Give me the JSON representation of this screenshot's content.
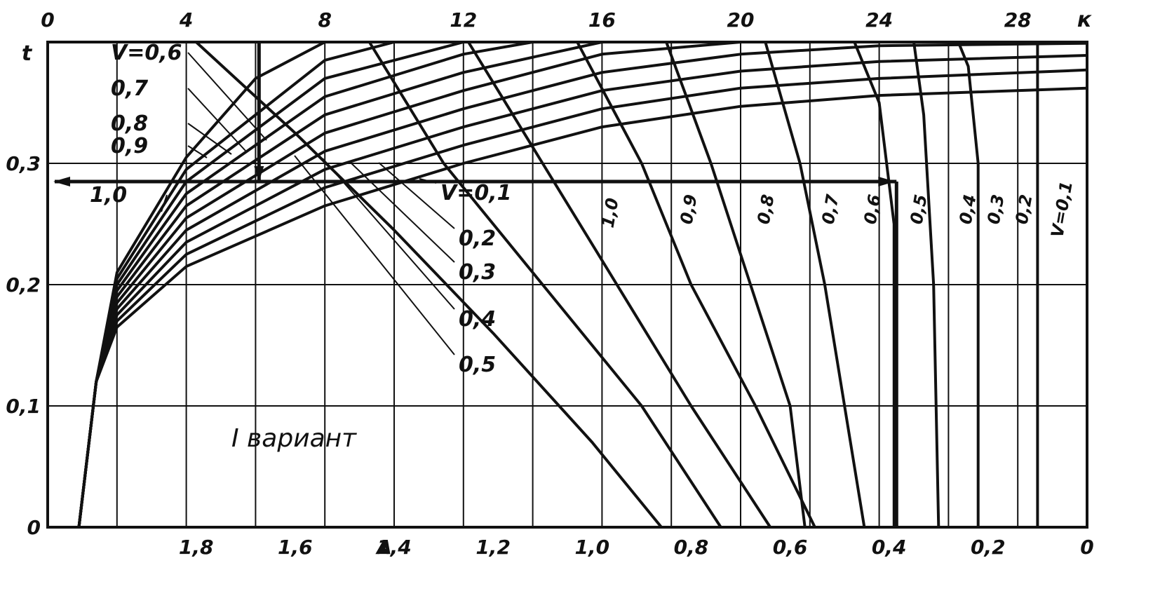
{
  "chart_data": {
    "type": "line",
    "title": "",
    "annotation": "I вариант",
    "axes": {
      "bottom_k": {
        "label": "",
        "ticks": []
      },
      "top_k": {
        "label": "к",
        "ticks": [
          "0",
          "4",
          "8",
          "12",
          "16",
          "20",
          "24",
          "28"
        ],
        "range": [
          0,
          30
        ]
      },
      "left_t": {
        "label": "t",
        "ticks": [
          "0",
          "0,1",
          "0,2",
          "0,3"
        ],
        "range": [
          0,
          0.4
        ]
      },
      "bottom_A": {
        "label": "A",
        "ticks": [
          "1,8",
          "1,6",
          "1,4",
          "1,2",
          "1,0",
          "0,8",
          "0,6",
          "0,4",
          "0,2",
          "0"
        ],
        "range": [
          2.1,
          0
        ]
      }
    },
    "grid": true,
    "reference_lines": [
      {
        "type": "horizontal",
        "y": 0.285,
        "x_from": 0,
        "x_to": 24.5,
        "arrows": "both"
      },
      {
        "type": "vertical",
        "x": 6.1,
        "y_from": 0.4,
        "y_to": 0.285,
        "arrow": "down"
      },
      {
        "type": "vertical",
        "x": 24.5,
        "y_from": 0.285,
        "y_to": 0
      }
    ],
    "series_rising": [
      {
        "name": "V=0,1",
        "label": "V=0,1",
        "points": [
          [
            0.9,
            0
          ],
          [
            1.4,
            0.12
          ],
          [
            2,
            0.165
          ],
          [
            4,
            0.215
          ],
          [
            8,
            0.265
          ],
          [
            12,
            0.3
          ],
          [
            16,
            0.33
          ],
          [
            20,
            0.347
          ],
          [
            24,
            0.356
          ],
          [
            30,
            0.362
          ]
        ]
      },
      {
        "name": "0,2",
        "label": "0,2",
        "points": [
          [
            0.9,
            0
          ],
          [
            1.4,
            0.12
          ],
          [
            2,
            0.17
          ],
          [
            4,
            0.225
          ],
          [
            8,
            0.28
          ],
          [
            12,
            0.315
          ],
          [
            16,
            0.345
          ],
          [
            20,
            0.362
          ],
          [
            24,
            0.37
          ],
          [
            30,
            0.377
          ]
        ]
      },
      {
        "name": "0,3",
        "label": "0,3",
        "points": [
          [
            0.9,
            0
          ],
          [
            1.4,
            0.12
          ],
          [
            2,
            0.175
          ],
          [
            4,
            0.235
          ],
          [
            8,
            0.295
          ],
          [
            12,
            0.33
          ],
          [
            16,
            0.36
          ],
          [
            20,
            0.376
          ],
          [
            24,
            0.384
          ],
          [
            30,
            0.389
          ]
        ]
      },
      {
        "name": "0,4",
        "label": "0,4",
        "points": [
          [
            0.9,
            0
          ],
          [
            1.4,
            0.12
          ],
          [
            2,
            0.18
          ],
          [
            4,
            0.245
          ],
          [
            8,
            0.31
          ],
          [
            12,
            0.345
          ],
          [
            16,
            0.375
          ],
          [
            20,
            0.39
          ],
          [
            24,
            0.397
          ],
          [
            30,
            0.399
          ]
        ]
      },
      {
        "name": "0,5",
        "label": "0,5",
        "points": [
          [
            0.9,
            0
          ],
          [
            1.4,
            0.12
          ],
          [
            2,
            0.185
          ],
          [
            4,
            0.255
          ],
          [
            8,
            0.325
          ],
          [
            12,
            0.36
          ],
          [
            16,
            0.39
          ],
          [
            20,
            0.4
          ]
        ]
      },
      {
        "name": "V=0,6",
        "label": "V=0,6",
        "points": [
          [
            0.9,
            0
          ],
          [
            1.4,
            0.12
          ],
          [
            2,
            0.19
          ],
          [
            4,
            0.265
          ],
          [
            8,
            0.34
          ],
          [
            12,
            0.375
          ],
          [
            16,
            0.4
          ]
        ]
      },
      {
        "name": "0,7",
        "label": "0,7",
        "points": [
          [
            0.9,
            0
          ],
          [
            1.4,
            0.12
          ],
          [
            2,
            0.195
          ],
          [
            4,
            0.275
          ],
          [
            8,
            0.355
          ],
          [
            12,
            0.39
          ],
          [
            14,
            0.4
          ]
        ]
      },
      {
        "name": "0,8",
        "label": "0,8",
        "points": [
          [
            0.9,
            0
          ],
          [
            1.4,
            0.12
          ],
          [
            2,
            0.2
          ],
          [
            4,
            0.285
          ],
          [
            8,
            0.37
          ],
          [
            12,
            0.4
          ]
        ]
      },
      {
        "name": "0,9",
        "label": "0,9",
        "points": [
          [
            0.9,
            0
          ],
          [
            1.4,
            0.12
          ],
          [
            2,
            0.205
          ],
          [
            4,
            0.295
          ],
          [
            8,
            0.385
          ],
          [
            10,
            0.4
          ]
        ]
      },
      {
        "name": "1,0",
        "label": "1,0",
        "points": [
          [
            0.9,
            0
          ],
          [
            1.4,
            0.12
          ],
          [
            2,
            0.21
          ],
          [
            4,
            0.305
          ],
          [
            6,
            0.37
          ],
          [
            8,
            0.4
          ]
        ]
      }
    ],
    "series_falling": [
      {
        "name": "1,0",
        "label": "1,0",
        "points": [
          [
            0.86,
            0
          ],
          [
            1.0,
            0.07
          ],
          [
            1.2,
            0.16
          ],
          [
            1.4,
            0.245
          ],
          [
            1.6,
            0.325
          ],
          [
            1.8,
            0.4
          ]
        ]
      },
      {
        "name": "0,9",
        "label": "0,9",
        "points": [
          [
            0.74,
            0
          ],
          [
            0.9,
            0.1
          ],
          [
            1.1,
            0.2
          ],
          [
            1.3,
            0.3
          ],
          [
            1.45,
            0.4
          ]
        ]
      },
      {
        "name": "0,8",
        "label": "0,8",
        "points": [
          [
            0.64,
            0
          ],
          [
            0.8,
            0.1
          ],
          [
            0.95,
            0.2
          ],
          [
            1.1,
            0.3
          ],
          [
            1.25,
            0.4
          ]
        ]
      },
      {
        "name": "0,7",
        "label": "0,7",
        "points": [
          [
            0.55,
            0
          ],
          [
            0.67,
            0.1
          ],
          [
            0.8,
            0.2
          ],
          [
            0.9,
            0.3
          ],
          [
            1.03,
            0.4
          ]
        ]
      },
      {
        "name": "0,6",
        "label": "0,6",
        "points": [
          [
            0.57,
            0
          ],
          [
            0.6,
            0.1
          ],
          [
            0.68,
            0.2
          ],
          [
            0.76,
            0.3
          ],
          [
            0.85,
            0.4
          ]
        ]
      },
      {
        "name": "0,5",
        "label": "0,5",
        "points": [
          [
            0.45,
            0
          ],
          [
            0.49,
            0.1
          ],
          [
            0.53,
            0.2
          ],
          [
            0.58,
            0.3
          ],
          [
            0.65,
            0.4
          ]
        ]
      },
      {
        "name": "0,4",
        "label": "0,4",
        "points": [
          [
            0.39,
            0
          ],
          [
            0.39,
            0.25
          ],
          [
            0.42,
            0.35
          ],
          [
            0.47,
            0.4
          ]
        ]
      },
      {
        "name": "0,3",
        "label": "0,3",
        "points": [
          [
            0.3,
            0
          ],
          [
            0.31,
            0.2
          ],
          [
            0.33,
            0.34
          ],
          [
            0.35,
            0.4
          ]
        ]
      },
      {
        "name": "0,2",
        "label": "0,2",
        "points": [
          [
            0.22,
            0
          ],
          [
            0.22,
            0.3
          ],
          [
            0.24,
            0.38
          ],
          [
            0.26,
            0.4
          ]
        ]
      },
      {
        "name": "V=0,1",
        "label": "V=0,1",
        "points": [
          [
            0.1,
            0
          ],
          [
            0.1,
            0.4
          ]
        ]
      }
    ]
  }
}
